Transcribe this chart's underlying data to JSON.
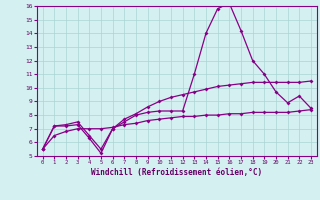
{
  "xlabel": "Windchill (Refroidissement éolien,°C)",
  "background_color": "#d4f0f0",
  "grid_color": "#aad4d4",
  "line_color": "#880088",
  "x": [
    0,
    1,
    2,
    3,
    4,
    5,
    6,
    7,
    8,
    9,
    10,
    11,
    12,
    13,
    14,
    15,
    16,
    17,
    18,
    19,
    20,
    21,
    22,
    23
  ],
  "line1": [
    5.5,
    7.2,
    7.2,
    7.3,
    6.3,
    5.2,
    7.0,
    7.5,
    8.0,
    8.2,
    8.3,
    8.3,
    8.3,
    11.0,
    14.0,
    15.8,
    16.2,
    14.2,
    12.0,
    11.0,
    9.7,
    8.9,
    9.4,
    8.5
  ],
  "line2": [
    5.5,
    7.2,
    7.3,
    7.5,
    6.5,
    5.5,
    7.0,
    7.7,
    8.1,
    8.6,
    9.0,
    9.3,
    9.5,
    9.7,
    9.9,
    10.1,
    10.2,
    10.3,
    10.4,
    10.4,
    10.4,
    10.4,
    10.4,
    10.5
  ],
  "line3": [
    5.5,
    6.5,
    6.8,
    7.0,
    7.0,
    7.0,
    7.1,
    7.3,
    7.4,
    7.6,
    7.7,
    7.8,
    7.9,
    7.9,
    8.0,
    8.0,
    8.1,
    8.1,
    8.2,
    8.2,
    8.2,
    8.2,
    8.3,
    8.4
  ],
  "ylim": [
    5,
    16
  ],
  "yticks": [
    5,
    6,
    7,
    8,
    9,
    10,
    11,
    12,
    13,
    14,
    15,
    16
  ],
  "xticks": [
    0,
    1,
    2,
    3,
    4,
    5,
    6,
    7,
    8,
    9,
    10,
    11,
    12,
    13,
    14,
    15,
    16,
    17,
    18,
    19,
    20,
    21,
    22,
    23
  ]
}
